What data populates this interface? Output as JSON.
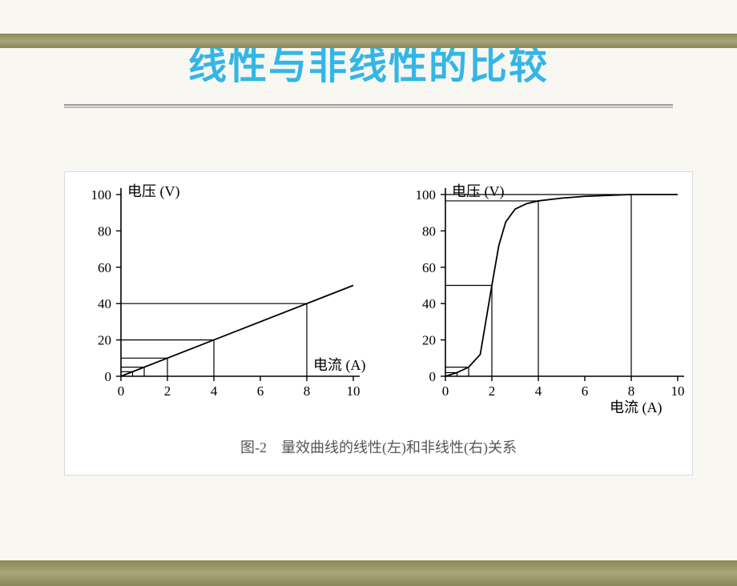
{
  "title": {
    "text": "线性与非线性的比较",
    "color": "#33b6e6",
    "fontsize": 48
  },
  "caption": "图-2　量效曲线的线性(左)和非线性(右)关系",
  "background_color": "#f8f7f2",
  "border_color": "#8a8858",
  "chart_box_bg": "#ffffff",
  "chart_left": {
    "type": "line",
    "ylabel": "电压 (V)",
    "xlabel": "电流 (A)",
    "xlim": [
      0,
      10
    ],
    "ylim": [
      0,
      100
    ],
    "xticks": [
      0,
      2,
      4,
      6,
      8,
      10
    ],
    "yticks": [
      0,
      20,
      40,
      60,
      80,
      100
    ],
    "line": {
      "x": [
        0,
        10
      ],
      "y": [
        0,
        50
      ]
    },
    "reference_at_x": [
      0.5,
      1,
      2,
      4,
      8
    ],
    "line_color": "#000000",
    "line_width": 1.8,
    "ref_color": "#000000",
    "ref_width": 1.2,
    "axis_color": "#000000",
    "label_fontsize": 18,
    "tick_fontsize": 17
  },
  "chart_right": {
    "type": "line",
    "ylabel": "电压 (V)",
    "xlabel": "电流 (A)",
    "xlim": [
      0,
      10
    ],
    "ylim": [
      0,
      100
    ],
    "xticks": [
      0,
      2,
      4,
      6,
      8,
      10
    ],
    "yticks": [
      0,
      20,
      40,
      60,
      80,
      100
    ],
    "line": {
      "x": [
        0,
        0.5,
        1.0,
        1.5,
        2.0,
        2.3,
        2.6,
        3.0,
        3.5,
        4.0,
        5.0,
        6.0,
        8.0,
        10.0
      ],
      "y": [
        0,
        2,
        5,
        12,
        50,
        72,
        85,
        92,
        95,
        96.5,
        98,
        99,
        100,
        100
      ]
    },
    "reference_at_x": [
      0.5,
      1,
      2,
      4,
      8
    ],
    "reference_at_y": [
      2,
      5,
      50,
      96.5,
      100
    ],
    "line_color": "#000000",
    "line_width": 1.8,
    "ref_color": "#000000",
    "ref_width": 1.2,
    "axis_color": "#000000",
    "label_fontsize": 18,
    "tick_fontsize": 17
  }
}
